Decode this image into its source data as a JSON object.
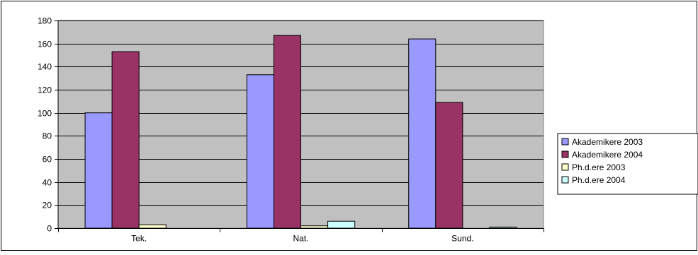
{
  "chart_data": {
    "type": "bar",
    "categories": [
      "Tek.",
      "Nat.",
      "Sund."
    ],
    "series": [
      {
        "name": "Akademikere 2003",
        "values": [
          100,
          133,
          164
        ],
        "color": "#9999ff"
      },
      {
        "name": "Akademikere 2004",
        "values": [
          153,
          167,
          109
        ],
        "color": "#993366"
      },
      {
        "name": "Ph.d.ere 2003",
        "values": [
          3,
          2,
          0
        ],
        "color": "#ffffcc"
      },
      {
        "name": "Ph.d.ere 2004",
        "values": [
          0,
          6,
          1
        ],
        "color": "#ccffff"
      }
    ],
    "title": "",
    "xlabel": "",
    "ylabel": "",
    "ylim": [
      0,
      180
    ],
    "yticks": [
      0,
      20,
      40,
      60,
      80,
      100,
      120,
      140,
      160,
      180
    ],
    "grid": true,
    "legend": "right",
    "plot_background": "#c0c0c0"
  }
}
